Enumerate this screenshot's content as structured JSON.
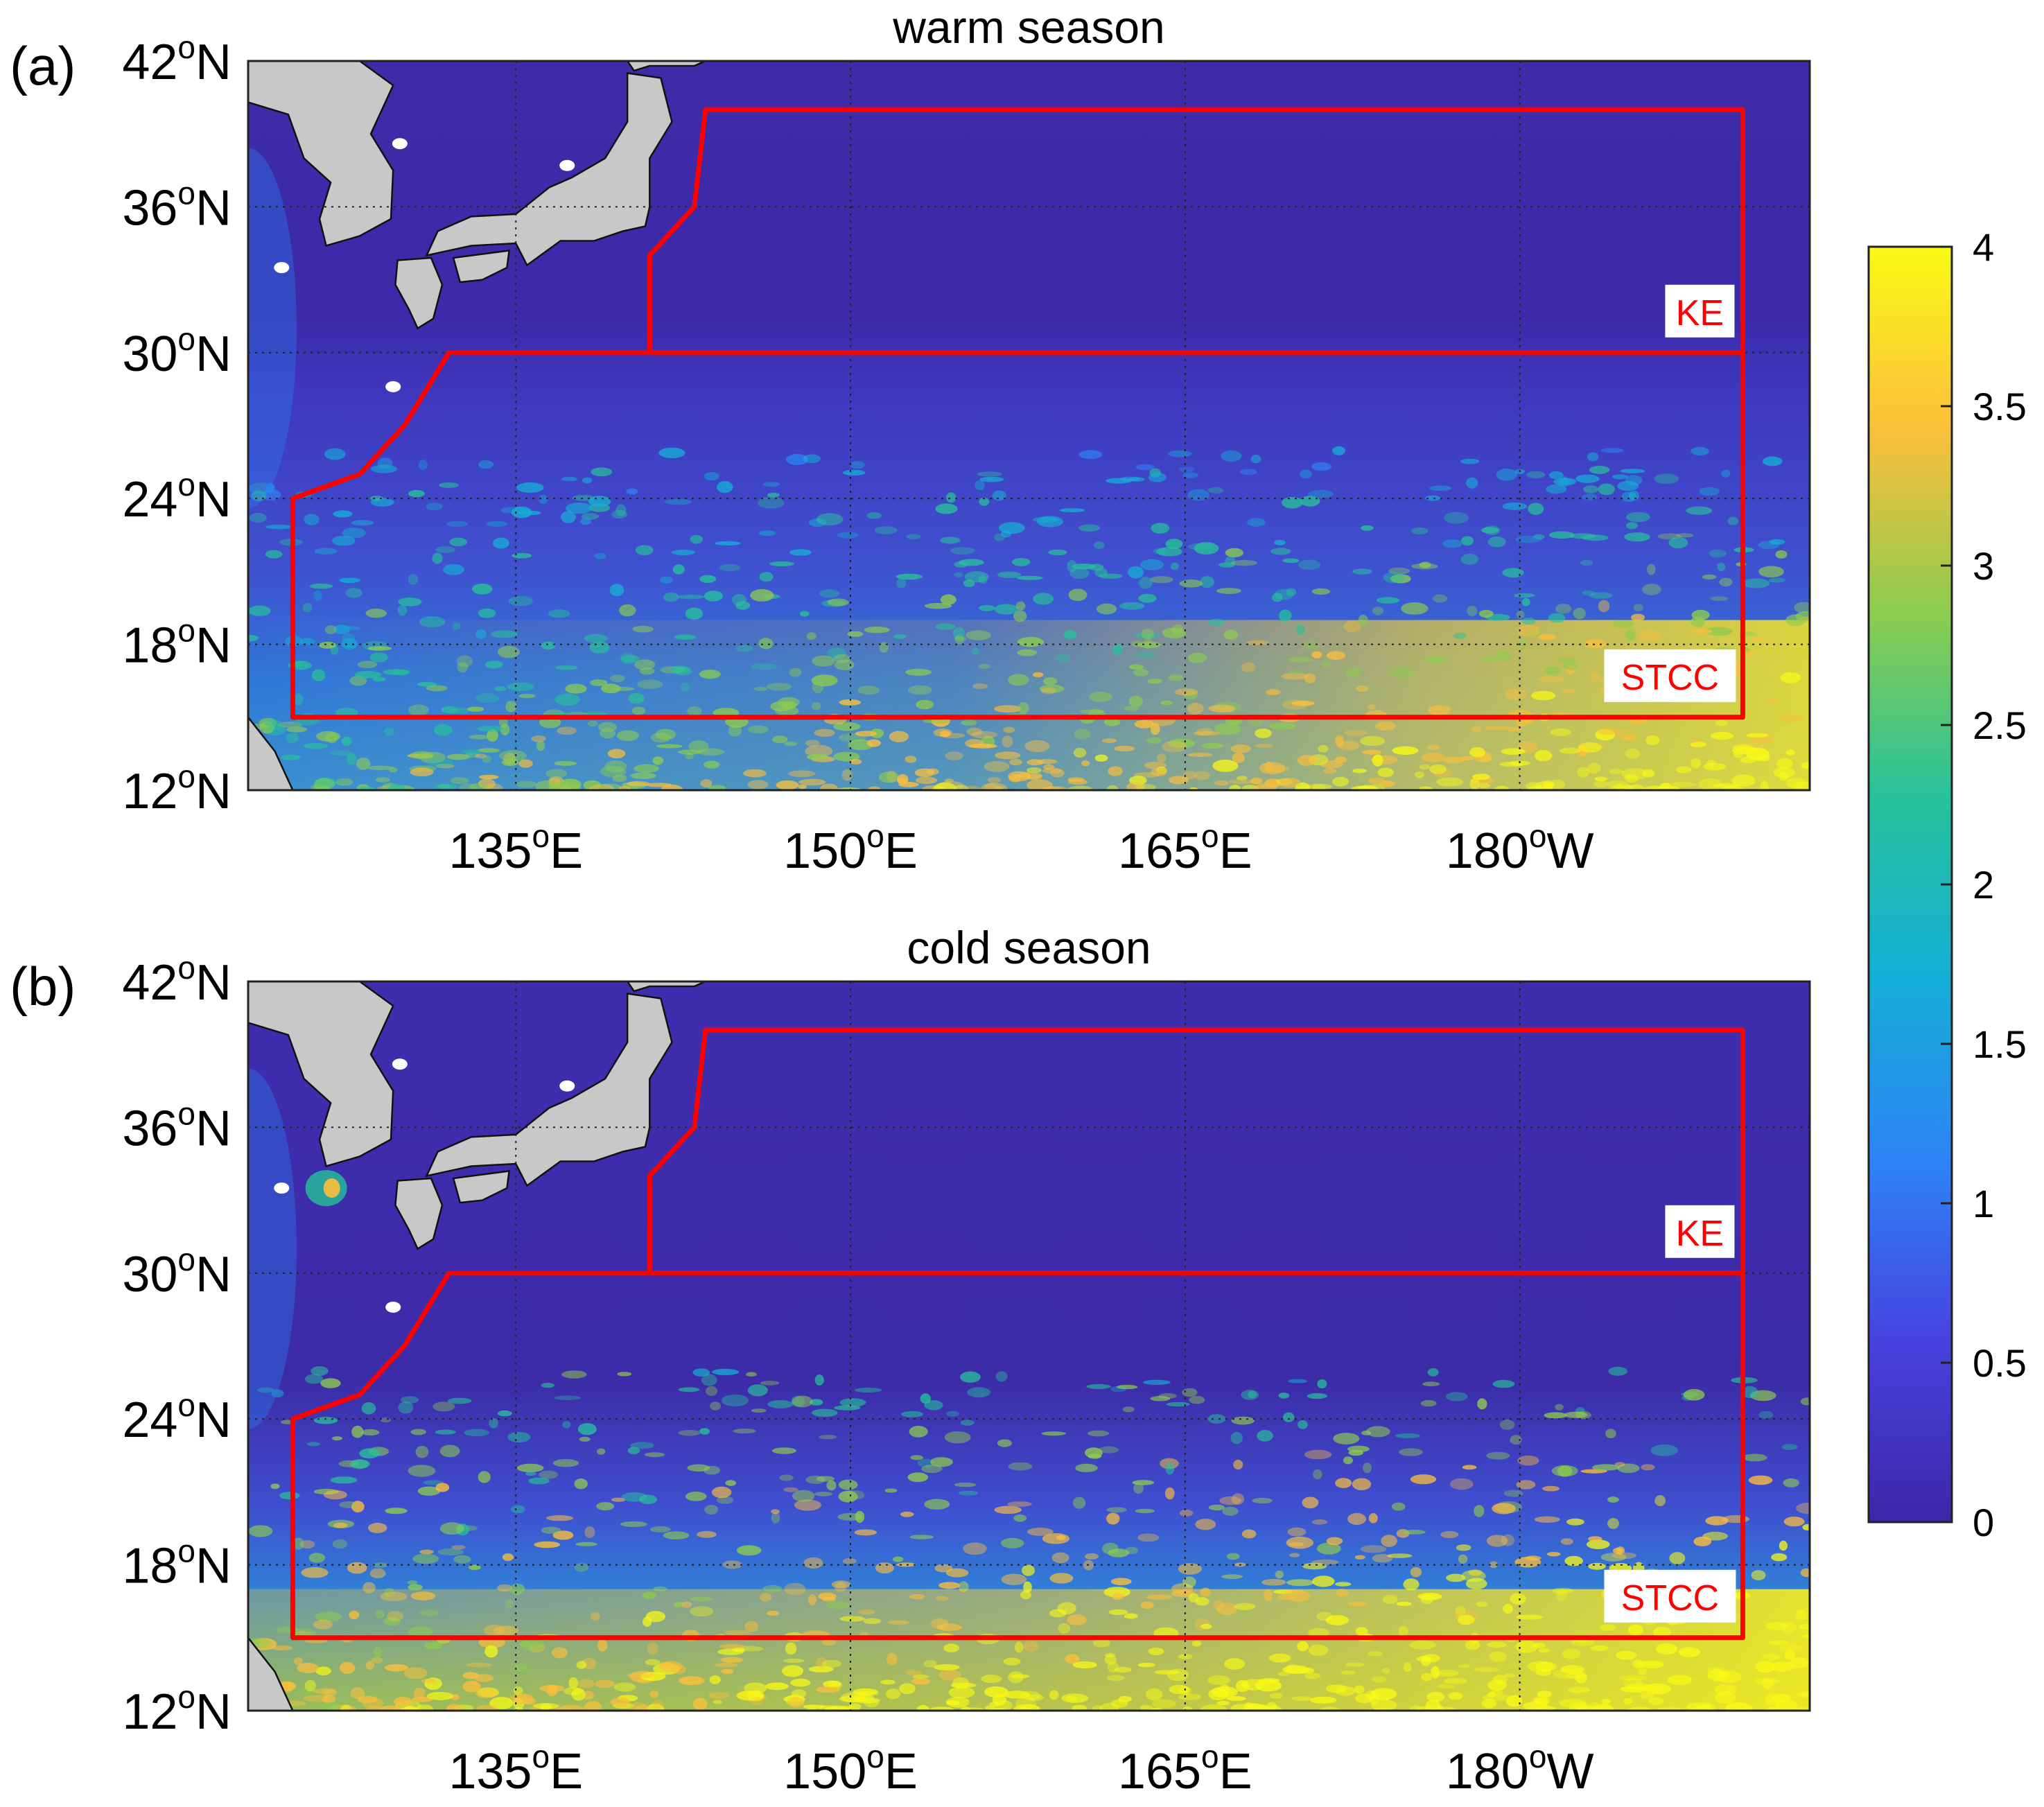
{
  "panels": [
    {
      "letter": "(a)",
      "title": "warm season",
      "box_labels": {
        "ke": "KE",
        "stcc": "STCC"
      },
      "lat_ticks": [
        {
          "deg": "42",
          "sup": "o",
          "hem": "N",
          "value": 42
        },
        {
          "deg": "36",
          "sup": "o",
          "hem": "N",
          "value": 36
        },
        {
          "deg": "30",
          "sup": "o",
          "hem": "N",
          "value": 30
        },
        {
          "deg": "24",
          "sup": "o",
          "hem": "N",
          "value": 24
        },
        {
          "deg": "18",
          "sup": "o",
          "hem": "N",
          "value": 18
        },
        {
          "deg": "12",
          "sup": "o",
          "hem": "N",
          "value": 12
        }
      ],
      "lon_ticks": [
        {
          "deg": "135",
          "sup": "o",
          "hem": "E",
          "value": 135
        },
        {
          "deg": "150",
          "sup": "o",
          "hem": "E",
          "value": 150
        },
        {
          "deg": "165",
          "sup": "o",
          "hem": "E",
          "value": 165
        },
        {
          "deg": "180",
          "sup": "o",
          "hem": "W",
          "value": 180
        }
      ]
    },
    {
      "letter": "(b)",
      "title": "cold season",
      "box_labels": {
        "ke": "KE",
        "stcc": "STCC"
      },
      "lat_ticks": [
        {
          "deg": "42",
          "sup": "o",
          "hem": "N",
          "value": 42
        },
        {
          "deg": "36",
          "sup": "o",
          "hem": "N",
          "value": 36
        },
        {
          "deg": "30",
          "sup": "o",
          "hem": "N",
          "value": 30
        },
        {
          "deg": "24",
          "sup": "o",
          "hem": "N",
          "value": 24
        },
        {
          "deg": "18",
          "sup": "o",
          "hem": "N",
          "value": 18
        },
        {
          "deg": "12",
          "sup": "o",
          "hem": "N",
          "value": 12
        }
      ],
      "lon_ticks": [
        {
          "deg": "135",
          "sup": "o",
          "hem": "E",
          "value": 135
        },
        {
          "deg": "150",
          "sup": "o",
          "hem": "E",
          "value": 150
        },
        {
          "deg": "165",
          "sup": "o",
          "hem": "E",
          "value": 165
        },
        {
          "deg": "180",
          "sup": "o",
          "hem": "W",
          "value": 180
        }
      ]
    }
  ],
  "colorbar": {
    "ticks": [
      "0",
      "0.5",
      "1",
      "1.5",
      "2",
      "2.5",
      "3",
      "3.5",
      "4"
    ],
    "min": 0,
    "max": 4,
    "colors": [
      "#3e26a8",
      "#4743e0",
      "#2c85f6",
      "#15afd5",
      "#27c29a",
      "#8dcc4e",
      "#fcbf3b",
      "#f9fa14"
    ]
  },
  "map_extent": {
    "lon_min": 123,
    "lon_max": 193,
    "lat_min": 12,
    "lat_max": 42
  },
  "regions": {
    "ke": [
      [
        143.5,
        40
      ],
      [
        190,
        40
      ],
      [
        190,
        30
      ],
      [
        141,
        30
      ],
      [
        141,
        34
      ],
      [
        143,
        36
      ]
    ],
    "stcc": [
      [
        132,
        30
      ],
      [
        190,
        30
      ],
      [
        190,
        15
      ],
      [
        125,
        15
      ],
      [
        125,
        24
      ],
      [
        128,
        25
      ],
      [
        130,
        27
      ]
    ]
  },
  "palette": {
    "region_outline": "#ff0000",
    "land": "#c8c8c8",
    "ocean_low": "#3e26a8",
    "grid": "#222222"
  }
}
